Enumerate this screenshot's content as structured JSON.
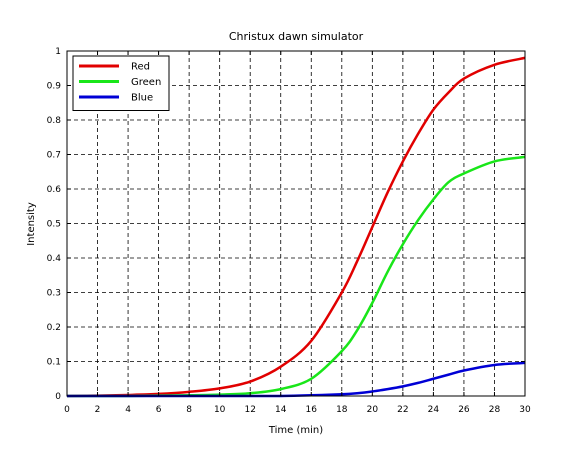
{
  "chart_data": {
    "type": "line",
    "title": "Christux dawn simulator",
    "xlabel": "Time (min)",
    "ylabel": "Intensity",
    "xlim": [
      0,
      30
    ],
    "ylim": [
      0,
      1
    ],
    "xticks": [
      0,
      2,
      4,
      6,
      8,
      10,
      12,
      14,
      16,
      18,
      20,
      22,
      24,
      26,
      28,
      30
    ],
    "yticks": [
      0,
      0.1,
      0.2,
      0.3,
      0.4,
      0.5,
      0.6,
      0.7,
      0.8,
      0.9,
      1
    ],
    "grid": true,
    "legend_position": "top-left",
    "x": [
      0,
      2,
      4,
      6,
      8,
      10,
      12,
      14,
      16,
      18,
      19,
      20,
      21,
      22,
      23,
      24,
      25,
      26,
      28,
      30
    ],
    "series": [
      {
        "name": "Red",
        "color": "#e10000",
        "values": [
          0.0,
          0.001,
          0.003,
          0.006,
          0.012,
          0.022,
          0.042,
          0.085,
          0.16,
          0.3,
          0.39,
          0.49,
          0.59,
          0.68,
          0.76,
          0.83,
          0.88,
          0.92,
          0.96,
          0.98
        ]
      },
      {
        "name": "Green",
        "color": "#19e619",
        "values": [
          0.0,
          0.0,
          0.0,
          0.001,
          0.002,
          0.004,
          0.008,
          0.02,
          0.05,
          0.13,
          0.19,
          0.27,
          0.36,
          0.44,
          0.51,
          0.57,
          0.62,
          0.645,
          0.68,
          0.693
        ]
      },
      {
        "name": "Blue",
        "color": "#0000d5",
        "values": [
          0.0,
          0.0,
          0.0,
          0.0,
          0.0,
          0.0,
          0.0,
          0.0,
          0.002,
          0.005,
          0.008,
          0.013,
          0.02,
          0.028,
          0.038,
          0.05,
          0.062,
          0.074,
          0.09,
          0.096
        ]
      }
    ]
  }
}
